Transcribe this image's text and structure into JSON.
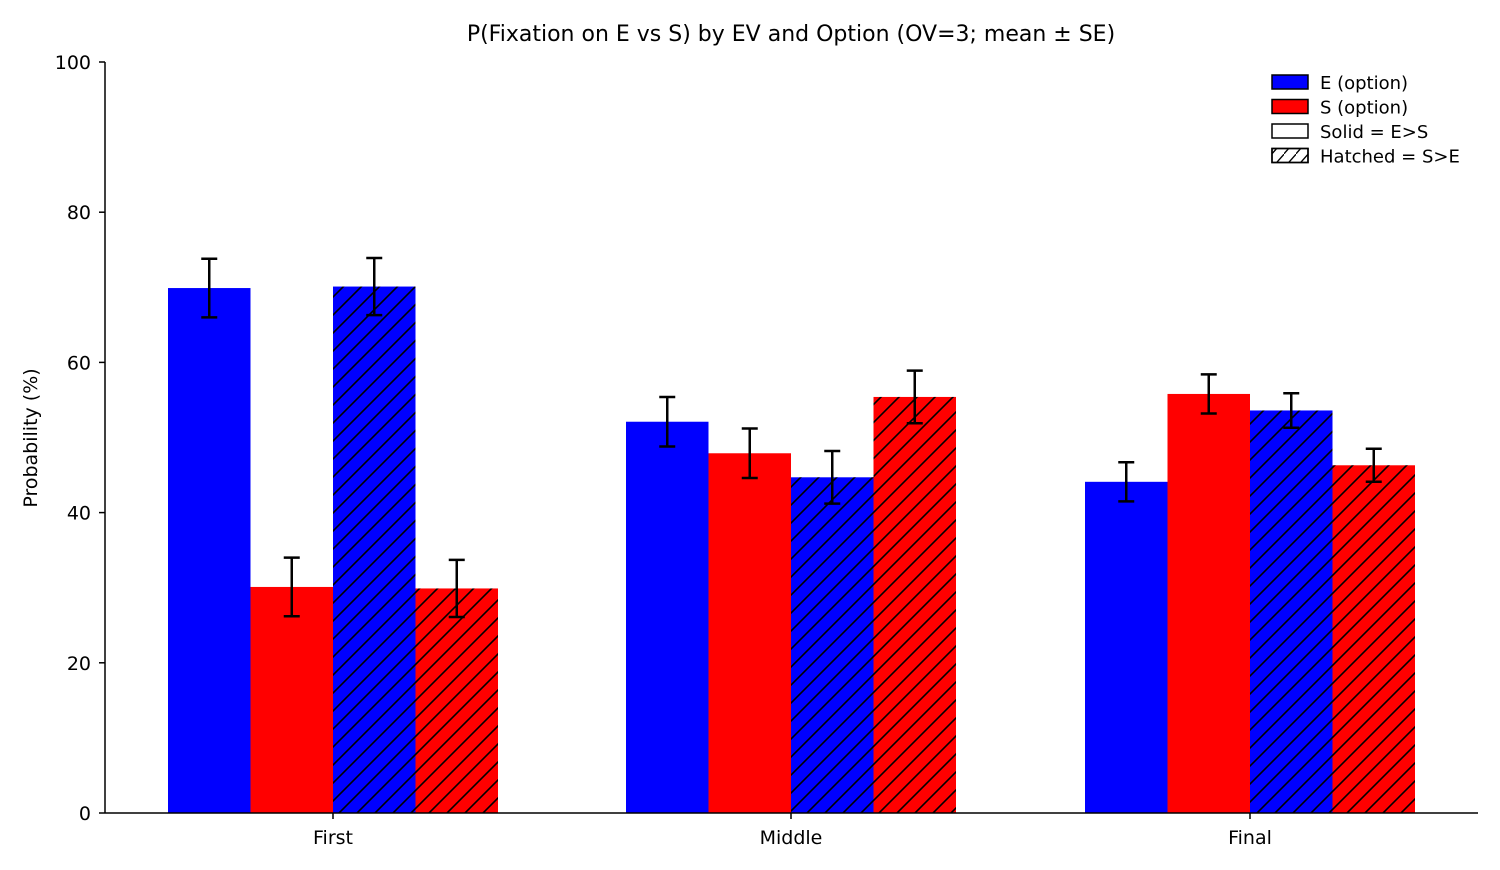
{
  "chart_data": {
    "type": "bar",
    "title": "P(Fixation on E vs S) by EV and Option (OV=3; mean ± SE)",
    "xlabel": "",
    "ylabel": "Probability (%)",
    "ylim": [
      0,
      100
    ],
    "yticks": [
      0,
      20,
      40,
      60,
      80,
      100
    ],
    "categories": [
      "First",
      "Middle",
      "Final"
    ],
    "grid": false,
    "legend_position": "top-right",
    "series": [
      {
        "option": "E",
        "condition": "E>S",
        "color": "#0000ff",
        "hatched": false,
        "values": [
          69.9,
          52.1,
          44.1
        ],
        "errors": [
          3.9,
          3.3,
          2.6
        ]
      },
      {
        "option": "S",
        "condition": "E>S",
        "color": "#ff0000",
        "hatched": false,
        "values": [
          30.1,
          47.9,
          55.8
        ],
        "errors": [
          3.9,
          3.3,
          2.6
        ]
      },
      {
        "option": "E",
        "condition": "S>E",
        "color": "#0000ff",
        "hatched": true,
        "values": [
          70.1,
          44.7,
          53.6
        ],
        "errors": [
          3.8,
          3.5,
          2.3
        ]
      },
      {
        "option": "S",
        "condition": "S>E",
        "color": "#ff0000",
        "hatched": true,
        "values": [
          29.9,
          55.4,
          46.3
        ],
        "errors": [
          3.8,
          3.5,
          2.2
        ]
      }
    ],
    "legend": [
      {
        "label": "E (option)",
        "color": "#0000ff",
        "hatched": false
      },
      {
        "label": "S (option)",
        "color": "#ff0000",
        "hatched": false
      },
      {
        "label": "Solid = E>S",
        "color": "#ffffff",
        "hatched": false
      },
      {
        "label": "Hatched = S>E",
        "color": "#ffffff",
        "hatched": true
      }
    ]
  }
}
